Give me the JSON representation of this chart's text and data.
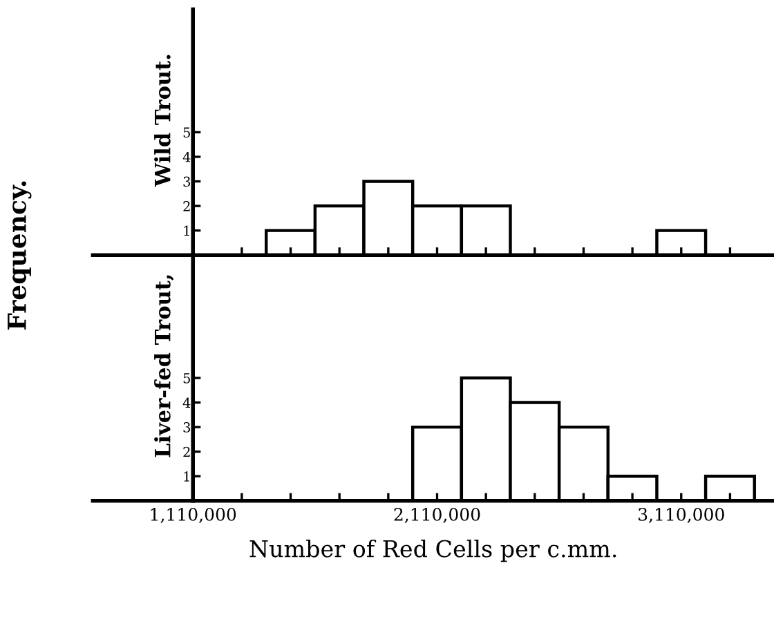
{
  "chart_data": [
    {
      "type": "histogram",
      "ylabel": "Wild Trout.",
      "annotations": [
        "Frequency."
      ],
      "bins": [
        1410000,
        1610000,
        1810000,
        2010000,
        2210000,
        2410000,
        2610000,
        2810000,
        3010000,
        3210000
      ],
      "values": [
        1,
        2,
        3,
        2,
        2,
        0,
        0,
        0,
        1
      ],
      "color": "#ffffff",
      "xlim": [
        700000,
        3490000
      ],
      "xticks": [
        {
          "value": 1110000,
          "label": null
        },
        {
          "value": 1310000,
          "label": null
        },
        {
          "value": 1510000,
          "label": null
        },
        {
          "value": 1710000,
          "label": null
        },
        {
          "value": 1910000,
          "label": null
        },
        {
          "value": 2110000,
          "label": null
        },
        {
          "value": 2310000,
          "label": null
        },
        {
          "value": 2510000,
          "label": null
        },
        {
          "value": 2710000,
          "label": null
        },
        {
          "value": 2910000,
          "label": null
        },
        {
          "value": 3110000,
          "label": null
        },
        {
          "value": 3310000,
          "label": null
        }
      ],
      "ylim": [
        0,
        10
      ],
      "yticks": [
        1,
        2,
        3,
        4,
        5
      ],
      "tick_labels": "y",
      "grid": false,
      "legend": false
    },
    {
      "type": "histogram",
      "ylabel": "Liver-fed Trout,",
      "xlabel": "Number of Red Cells per c.mm.",
      "bins": [
        2010000,
        2210000,
        2410000,
        2610000,
        2810000,
        3010000,
        3210000,
        3410000
      ],
      "values": [
        3,
        5,
        4,
        3,
        1,
        0,
        1
      ],
      "color": "#ffffff",
      "xlim": [
        700000,
        3490000
      ],
      "xticks": [
        {
          "value": 1110000,
          "label": "1,110,000"
        },
        {
          "value": 1310000,
          "label": null
        },
        {
          "value": 1510000,
          "label": null
        },
        {
          "value": 1710000,
          "label": null
        },
        {
          "value": 1910000,
          "label": null
        },
        {
          "value": 2110000,
          "label": "2,110,000"
        },
        {
          "value": 2310000,
          "label": null
        },
        {
          "value": 2510000,
          "label": null
        },
        {
          "value": 2710000,
          "label": null
        },
        {
          "value": 2910000,
          "label": null
        },
        {
          "value": 3110000,
          "label": "3,110,000"
        },
        {
          "value": 3310000,
          "label": null
        }
      ],
      "ylim": [
        0,
        10
      ],
      "yticks": [
        1,
        2,
        3,
        4,
        5
      ],
      "grid": false,
      "legend": false
    }
  ]
}
